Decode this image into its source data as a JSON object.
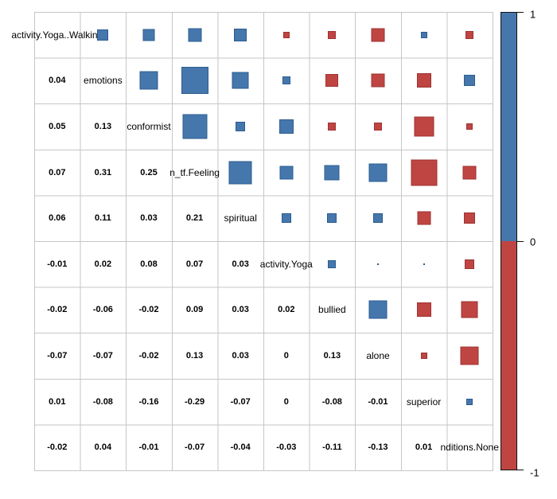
{
  "chart_data": {
    "type": "heatmap",
    "subtype": "correlation-matrix",
    "title": "",
    "legend_position": "right",
    "note": "corrplot-style mixed plot: correlation coefficients printed in the lower triangle, size- and color-coded squares in the upper triangle, variable names on the diagonal",
    "variables": [
      "activity.Yoga..Walking",
      "emotions",
      "conformist",
      "n_tf.Feeling",
      "spiritual",
      "activity.Yoga",
      "bullied",
      "alone",
      "superior",
      "nditions.None"
    ],
    "lower_triangle": [
      [],
      [
        "0.04"
      ],
      [
        "0.05",
        "0.13"
      ],
      [
        "0.07",
        "0.31",
        "0.25"
      ],
      [
        "0.06",
        "0.11",
        "0.03",
        "0.21"
      ],
      [
        "-0.01",
        "0.02",
        "0.08",
        "0.07",
        "0.03"
      ],
      [
        "-0.02",
        "-0.06",
        "-0.02",
        "0.09",
        "0.03",
        "0.02"
      ],
      [
        "-0.07",
        "-0.07",
        "-0.02",
        "0.13",
        "0.03",
        "0",
        "0.13"
      ],
      [
        "0.01",
        "-0.08",
        "-0.16",
        "-0.29",
        "-0.07",
        "0",
        "-0.08",
        "-0.01"
      ],
      [
        "-0.02",
        "0.04",
        "-0.01",
        "-0.07",
        "-0.04",
        "-0.03",
        "-0.11",
        "-0.13",
        "0.01"
      ]
    ],
    "colorbar": {
      "max": 1,
      "min": -1,
      "top_label": "1",
      "mid_label": "0",
      "bottom_label": "-1"
    },
    "colors": {
      "positive_fill": "#4677AC",
      "positive_border": "#2B5C8F",
      "negative_fill": "#BF4543",
      "negative_border": "#9E3231",
      "grid_line": "#C6C6C6",
      "text": "#000000",
      "bar_border": "#111111"
    }
  }
}
